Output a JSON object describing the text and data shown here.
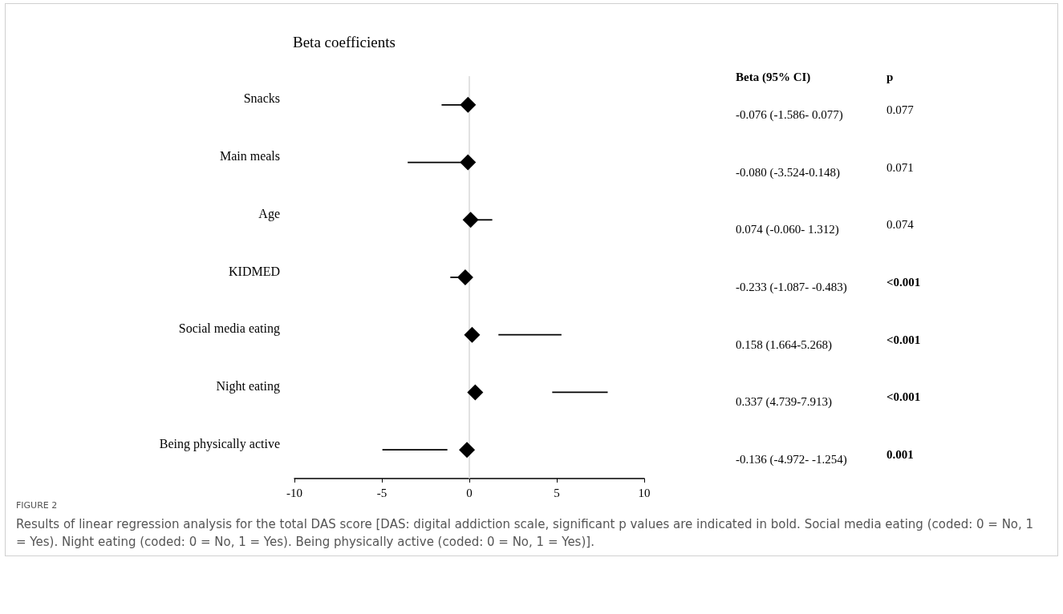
{
  "chart_data": {
    "type": "scatter",
    "orientation": "horizontal",
    "title": "Beta coefficients",
    "categories": [
      "Snacks",
      "Main meals",
      "Age",
      "KIDMED",
      "Social media eating",
      "Night eating",
      "Being physically active"
    ],
    "values": [
      -0.076,
      -0.08,
      0.074,
      -0.233,
      0.158,
      0.337,
      -0.136
    ],
    "errors": [
      [
        -1.586,
        0.077
      ],
      [
        -3.524,
        0.148
      ],
      [
        -0.06,
        1.312
      ],
      [
        -1.087,
        -0.483
      ],
      [
        1.664,
        5.268
      ],
      [
        4.739,
        7.913
      ],
      [
        -4.972,
        -1.254
      ]
    ],
    "color": "#000000",
    "marker": "diamond",
    "xlim": [
      -10,
      10
    ],
    "xticks": [
      -10,
      -5,
      0,
      5,
      10
    ],
    "grid": false,
    "ref_lines": [
      {
        "axis": "x",
        "value": 0,
        "color": "#d9d9d9"
      }
    ],
    "annotations": [
      "Beta (95% CI)",
      "p",
      "-0.076 (-1.586- 0.077)",
      "-0.080 (-3.524-0.148)",
      "0.074 (-0.060- 1.312)",
      "-0.233 (-1.087- -0.483)",
      "0.158 (1.664-5.268)",
      "0.337 (4.739-7.913)",
      "-0.136 (-4.972- -1.254)",
      "0.077",
      "0.071",
      "0.074",
      "<0.001",
      "<0.001",
      "<0.001",
      "0.001",
      "FIGURE 2",
      "Results of linear regression analysis for the total DAS score [DAS: digital addiction scale, significant p values are indicated in bold. Social media eating (coded: 0 = No, 1 = Yes). Night eating (coded: 0 = No, 1 = Yes). Being physically active (coded: 0 = No, 1 = Yes)]."
    ]
  }
}
